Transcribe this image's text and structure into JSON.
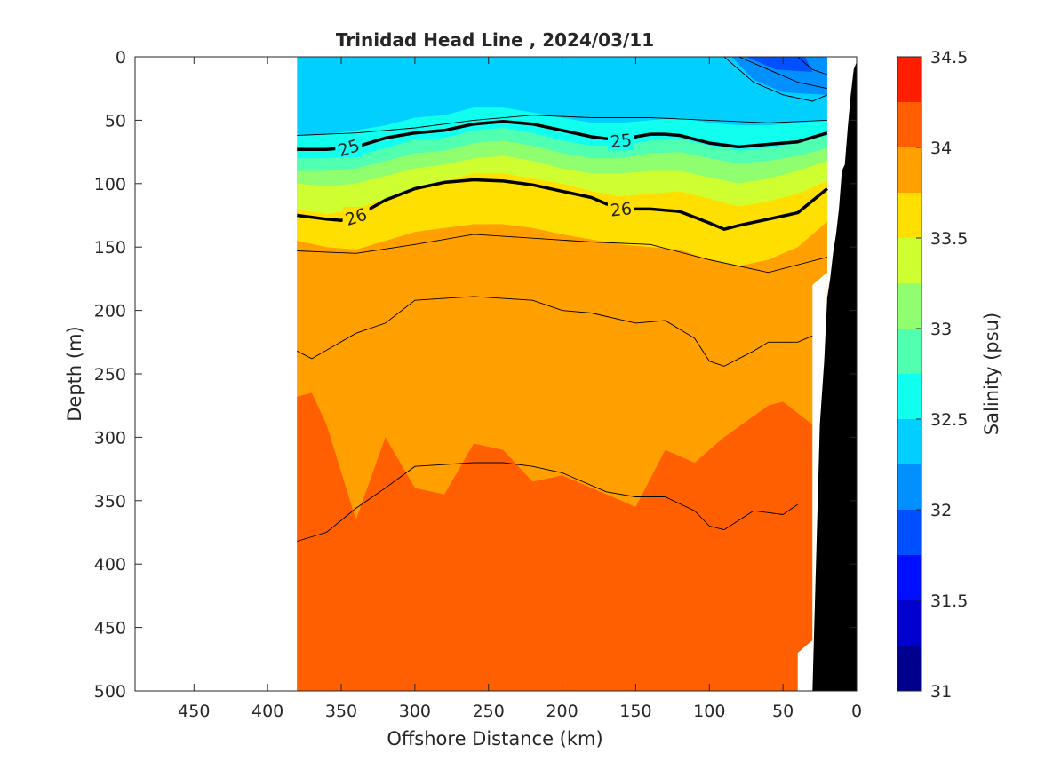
{
  "chart_data": {
    "type": "heatmap",
    "title": "Trinidad Head Line , 2024/03/11",
    "xlabel": "Offshore Distance (km)",
    "ylabel": "Depth (m)",
    "colorbar_label": "Salinity (psu)",
    "xlim": [
      490,
      0
    ],
    "x_reversed": true,
    "ylim": [
      0,
      500
    ],
    "y_reversed": true,
    "x_ticks": [
      "450",
      "400",
      "350",
      "300",
      "250",
      "200",
      "150",
      "100",
      "50",
      "0"
    ],
    "y_ticks": [
      "0",
      "50",
      "100",
      "150",
      "200",
      "250",
      "300",
      "350",
      "400",
      "450",
      "500"
    ],
    "colorbar": {
      "min": 31,
      "max": 34.5,
      "step": 0.25,
      "ticks": [
        "31",
        "31.5",
        "32",
        "32.5",
        "33",
        "33.5",
        "34",
        "34.5"
      ],
      "colors": [
        "#00008f",
        "#0000cf",
        "#0010ff",
        "#0050ff",
        "#0090ff",
        "#00cfff",
        "#10ffef",
        "#50ffaf",
        "#90ff6f",
        "#cfff30",
        "#ffdf00",
        "#ff9f00",
        "#ff5f00",
        "#ff1f00"
      ]
    },
    "data_extent_km": [
      380,
      20
    ],
    "salinity_layers": [
      {
        "salinity_min": 32.25,
        "salinity_max": 32.5,
        "top_depth": [
          0,
          0,
          0,
          0,
          0,
          0,
          0,
          0,
          0,
          0,
          0,
          0,
          0,
          0,
          0,
          0,
          0,
          0,
          0
        ],
        "x": [
          380,
          360,
          340,
          320,
          300,
          280,
          260,
          240,
          220,
          200,
          180,
          160,
          140,
          120,
          100,
          80,
          60,
          40,
          20
        ]
      },
      {
        "salinity_min": 32.5,
        "salinity_max": 32.75,
        "top_depth": [
          62,
          61,
          58,
          54,
          48,
          46,
          40,
          40,
          44,
          48,
          52,
          52,
          50,
          48,
          52,
          54,
          54,
          52,
          50
        ],
        "x": [
          380,
          360,
          340,
          320,
          300,
          280,
          260,
          240,
          220,
          200,
          180,
          160,
          140,
          120,
          100,
          80,
          60,
          40,
          20
        ]
      },
      {
        "salinity_min": 32.75,
        "salinity_max": 33.0,
        "top_depth": [
          80,
          80,
          78,
          72,
          65,
          64,
          58,
          56,
          60,
          66,
          70,
          70,
          66,
          65,
          70,
          74,
          72,
          68,
          62
        ],
        "x": [
          380,
          360,
          340,
          320,
          300,
          280,
          260,
          240,
          220,
          200,
          180,
          160,
          140,
          120,
          100,
          80,
          60,
          40,
          20
        ]
      },
      {
        "salinity_min": 33.0,
        "salinity_max": 33.25,
        "top_depth": [
          90,
          90,
          88,
          82,
          76,
          74,
          68,
          66,
          70,
          76,
          80,
          80,
          76,
          75,
          80,
          84,
          82,
          78,
          72
        ],
        "x": [
          380,
          360,
          340,
          320,
          300,
          280,
          260,
          240,
          220,
          200,
          180,
          160,
          140,
          120,
          100,
          80,
          60,
          40,
          20
        ]
      },
      {
        "salinity_min": 33.25,
        "salinity_max": 33.5,
        "top_depth": [
          100,
          102,
          100,
          94,
          88,
          85,
          80,
          78,
          82,
          88,
          92,
          92,
          90,
          90,
          95,
          100,
          96,
          90,
          82
        ],
        "x": [
          380,
          360,
          340,
          320,
          300,
          280,
          260,
          240,
          220,
          200,
          180,
          160,
          140,
          120,
          100,
          80,
          60,
          40,
          20
        ]
      },
      {
        "salinity_min": 33.5,
        "salinity_max": 33.75,
        "top_depth": [
          120,
          124,
          120,
          112,
          104,
          98,
          92,
          92,
          96,
          100,
          106,
          110,
          108,
          106,
          112,
          118,
          114,
          108,
          98
        ],
        "x": [
          380,
          360,
          340,
          320,
          300,
          280,
          260,
          240,
          220,
          200,
          180,
          160,
          140,
          120,
          100,
          80,
          60,
          40,
          20
        ]
      },
      {
        "salinity_min": 33.75,
        "salinity_max": 34.0,
        "top_depth": [
          145,
          150,
          152,
          145,
          138,
          135,
          132,
          132,
          135,
          140,
          144,
          148,
          150,
          152,
          160,
          165,
          160,
          150,
          130
        ],
        "x": [
          380,
          360,
          340,
          320,
          300,
          280,
          260,
          240,
          220,
          200,
          180,
          160,
          140,
          120,
          100,
          80,
          60,
          40,
          20
        ]
      },
      {
        "salinity_min": 34.0,
        "salinity_max": 34.25,
        "top_depth": [
          268,
          265,
          290,
          365,
          300,
          340,
          345,
          305,
          310,
          335,
          330,
          350,
          355,
          310,
          320,
          300,
          275,
          272,
          290
        ],
        "x": [
          380,
          370,
          360,
          340,
          320,
          300,
          280,
          260,
          240,
          220,
          200,
          160,
          150,
          130,
          110,
          90,
          60,
          50,
          30
        ]
      }
    ],
    "thin_contours_depth": [
      {
        "x": [
          380,
          340,
          300,
          260,
          220,
          180,
          140,
          100,
          60,
          20
        ],
        "y": [
          62,
          60,
          56,
          50,
          46,
          48,
          48,
          50,
          52,
          50
        ]
      },
      {
        "x": [
          380,
          340,
          300,
          260,
          220,
          180,
          140,
          100,
          60,
          20
        ],
        "y": [
          153,
          155,
          148,
          140,
          143,
          146,
          148,
          160,
          170,
          158
        ]
      },
      {
        "x": [
          380,
          370,
          340,
          320,
          300,
          260,
          220,
          200,
          180,
          150,
          130,
          110,
          100,
          90,
          70,
          60,
          40,
          30
        ],
        "y": [
          232,
          238,
          218,
          210,
          192,
          189,
          192,
          200,
          202,
          210,
          208,
          222,
          240,
          244,
          232,
          225,
          225,
          220
        ]
      },
      {
        "x": [
          380,
          360,
          340,
          320,
          300,
          260,
          240,
          220,
          200,
          170,
          150,
          130,
          110,
          100,
          90,
          70,
          50,
          40
        ],
        "y": [
          382,
          375,
          356,
          340,
          323,
          320,
          320,
          323,
          328,
          343,
          347,
          347,
          358,
          370,
          373,
          358,
          361,
          353
        ]
      }
    ],
    "isopycnal_labels": [
      "25",
      "25",
      "26",
      "26"
    ],
    "isopycnals": [
      {
        "sigma_t": 25,
        "x": [
          380,
          360,
          350,
          340,
          320,
          300,
          280,
          260,
          240,
          220,
          200,
          180,
          160,
          150,
          140,
          130,
          120,
          100,
          80,
          60,
          40,
          20
        ],
        "y": [
          73,
          73,
          72,
          71,
          64,
          60,
          58,
          53,
          51,
          53,
          58,
          63,
          66,
          63,
          61,
          61,
          62,
          68,
          71,
          69,
          67,
          60
        ]
      },
      {
        "sigma_t": 26,
        "x": [
          380,
          360,
          350,
          340,
          320,
          300,
          280,
          260,
          240,
          220,
          200,
          180,
          170,
          160,
          140,
          120,
          100,
          90,
          80,
          60,
          40,
          20
        ],
        "y": [
          125,
          128,
          129,
          126,
          113,
          104,
          99,
          97,
          98,
          101,
          106,
          111,
          116,
          120,
          120,
          122,
          131,
          136,
          133,
          128,
          123,
          104
        ]
      }
    ],
    "upper_contours": [
      {
        "x": [
          80,
          60,
          40,
          20
        ],
        "y": [
          0,
          10,
          20,
          25
        ]
      },
      {
        "x": [
          90,
          70,
          50,
          30,
          20
        ],
        "y": [
          0,
          20,
          30,
          35,
          30
        ]
      },
      {
        "x": [
          40,
          30,
          20
        ],
        "y": [
          0,
          10,
          14
        ]
      }
    ],
    "bathymetry_km": [
      0,
      2,
      4,
      6,
      8,
      10,
      12,
      14,
      16,
      18,
      20,
      22,
      25,
      30
    ],
    "bathymetry_depth": [
      4,
      10,
      30,
      55,
      85,
      90,
      120,
      140,
      155,
      175,
      190,
      240,
      290,
      500
    ]
  }
}
